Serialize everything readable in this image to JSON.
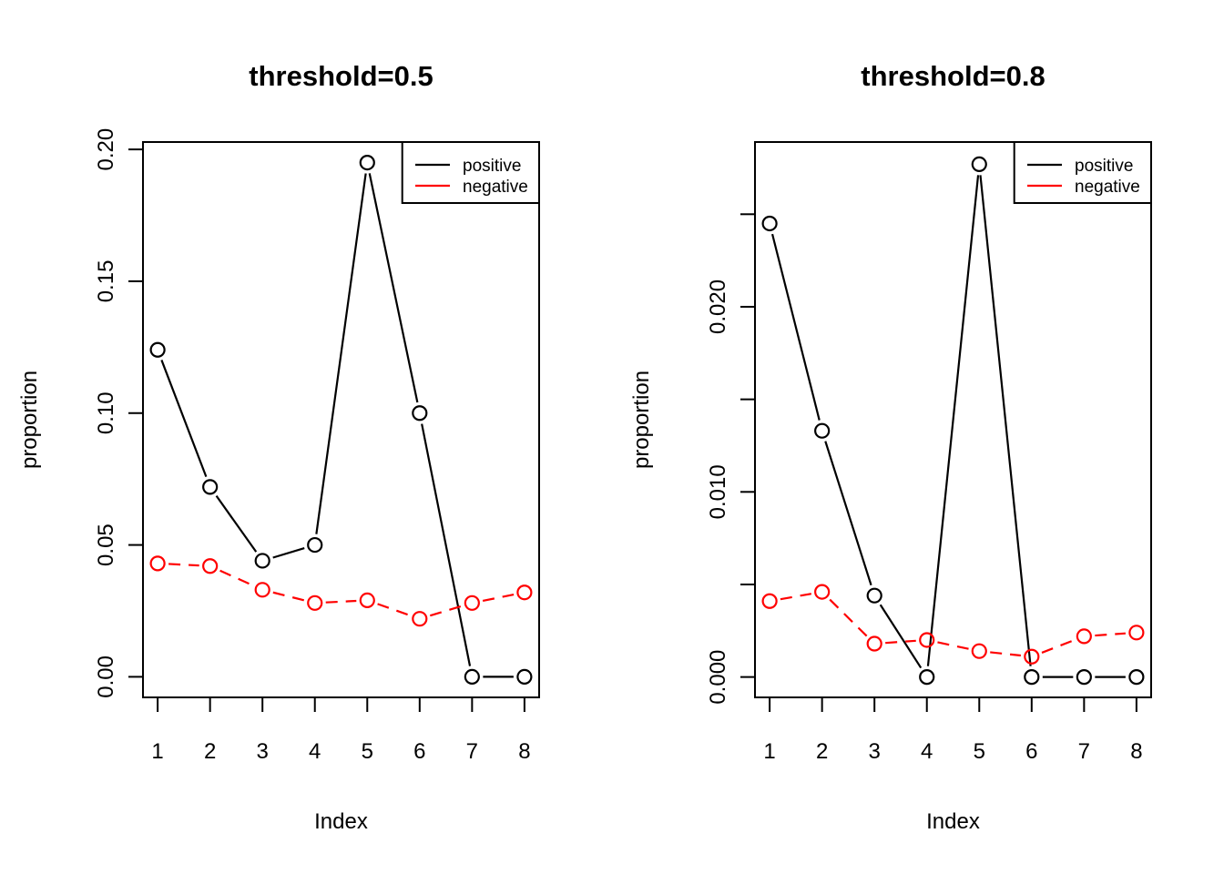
{
  "figure": {
    "background": "#ffffff",
    "accent_colors": {
      "positive": "#000000",
      "negative": "#ff0000"
    }
  },
  "chart_data": [
    {
      "type": "line",
      "title": "threshold=0.5",
      "xlabel": "Index",
      "ylabel": "proportion",
      "x": [
        1,
        2,
        3,
        4,
        5,
        6,
        7,
        8
      ],
      "xtick_labels": [
        "1",
        "2",
        "3",
        "4",
        "5",
        "6",
        "7",
        "8"
      ],
      "series": [
        {
          "name": "positive",
          "color": "#000000",
          "linestyle": "solid",
          "marker": "open-circle",
          "values": [
            0.124,
            0.072,
            0.044,
            0.05,
            0.195,
            0.1,
            0.0,
            0.0
          ]
        },
        {
          "name": "negative",
          "color": "#ff0000",
          "linestyle": "dashed",
          "marker": "open-circle",
          "values": [
            0.043,
            0.042,
            0.033,
            0.028,
            0.029,
            0.022,
            0.028,
            0.032
          ]
        }
      ],
      "yticks": [
        0.0,
        0.05,
        0.1,
        0.15,
        0.2
      ],
      "ytick_labels": [
        "0.00",
        "0.05",
        "0.10",
        "0.15",
        "0.20"
      ],
      "ylim": [
        -0.0078,
        0.2028
      ],
      "xlim": [
        0.72,
        8.28
      ],
      "grid": false,
      "legend": {
        "position": "topright",
        "entries": [
          "positive",
          "negative"
        ]
      }
    },
    {
      "type": "line",
      "title": "threshold=0.8",
      "xlabel": "Index",
      "ylabel": "proportion",
      "x": [
        1,
        2,
        3,
        4,
        5,
        6,
        7,
        8
      ],
      "xtick_labels": [
        "1",
        "2",
        "3",
        "4",
        "5",
        "6",
        "7",
        "8"
      ],
      "series": [
        {
          "name": "positive",
          "color": "#000000",
          "linestyle": "solid",
          "marker": "open-circle",
          "values": [
            0.0245,
            0.0133,
            0.0044,
            0.0,
            0.0277,
            0.0,
            0.0,
            0.0
          ]
        },
        {
          "name": "negative",
          "color": "#ff0000",
          "linestyle": "dashed",
          "marker": "open-circle",
          "values": [
            0.0041,
            0.0046,
            0.0018,
            0.002,
            0.0014,
            0.0011,
            0.0022,
            0.0024
          ]
        }
      ],
      "yticks": [
        0.0,
        0.005,
        0.01,
        0.015,
        0.02,
        0.025
      ],
      "ytick_labels": [
        "0.000",
        "",
        "0.010",
        "",
        "0.020",
        ""
      ],
      "ylim": [
        -0.0011,
        0.0289
      ],
      "xlim": [
        0.72,
        8.28
      ],
      "grid": false,
      "legend": {
        "position": "topright",
        "entries": [
          "positive",
          "negative"
        ]
      }
    }
  ]
}
